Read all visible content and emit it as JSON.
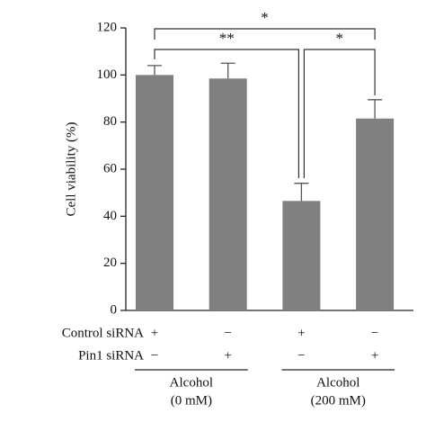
{
  "chart_data": {
    "type": "bar",
    "y_label": "Cell viability (%)",
    "categories": [
      null,
      null,
      null,
      null
    ],
    "values": [
      100,
      98.5,
      46.5,
      81.5
    ],
    "errors": [
      4,
      6.5,
      7.5,
      8
    ],
    "color": "#808080",
    "ylim": [
      0,
      120
    ],
    "yticks": [
      0,
      20,
      40,
      60,
      80,
      100,
      120
    ],
    "annotations": [
      "*",
      "**",
      "*"
    ],
    "conditions": [
      {
        "name": "Control siRNA",
        "marks": [
          "+",
          "−",
          "+",
          "−"
        ]
      },
      {
        "name": "Pin1 siRNA",
        "marks": [
          "−",
          "+",
          "−",
          "+"
        ]
      }
    ],
    "groups": [
      {
        "label": [
          "Alcohol",
          "(0 mM)"
        ]
      },
      {
        "label": [
          "Alcohol",
          "(200 mM)"
        ]
      }
    ]
  }
}
